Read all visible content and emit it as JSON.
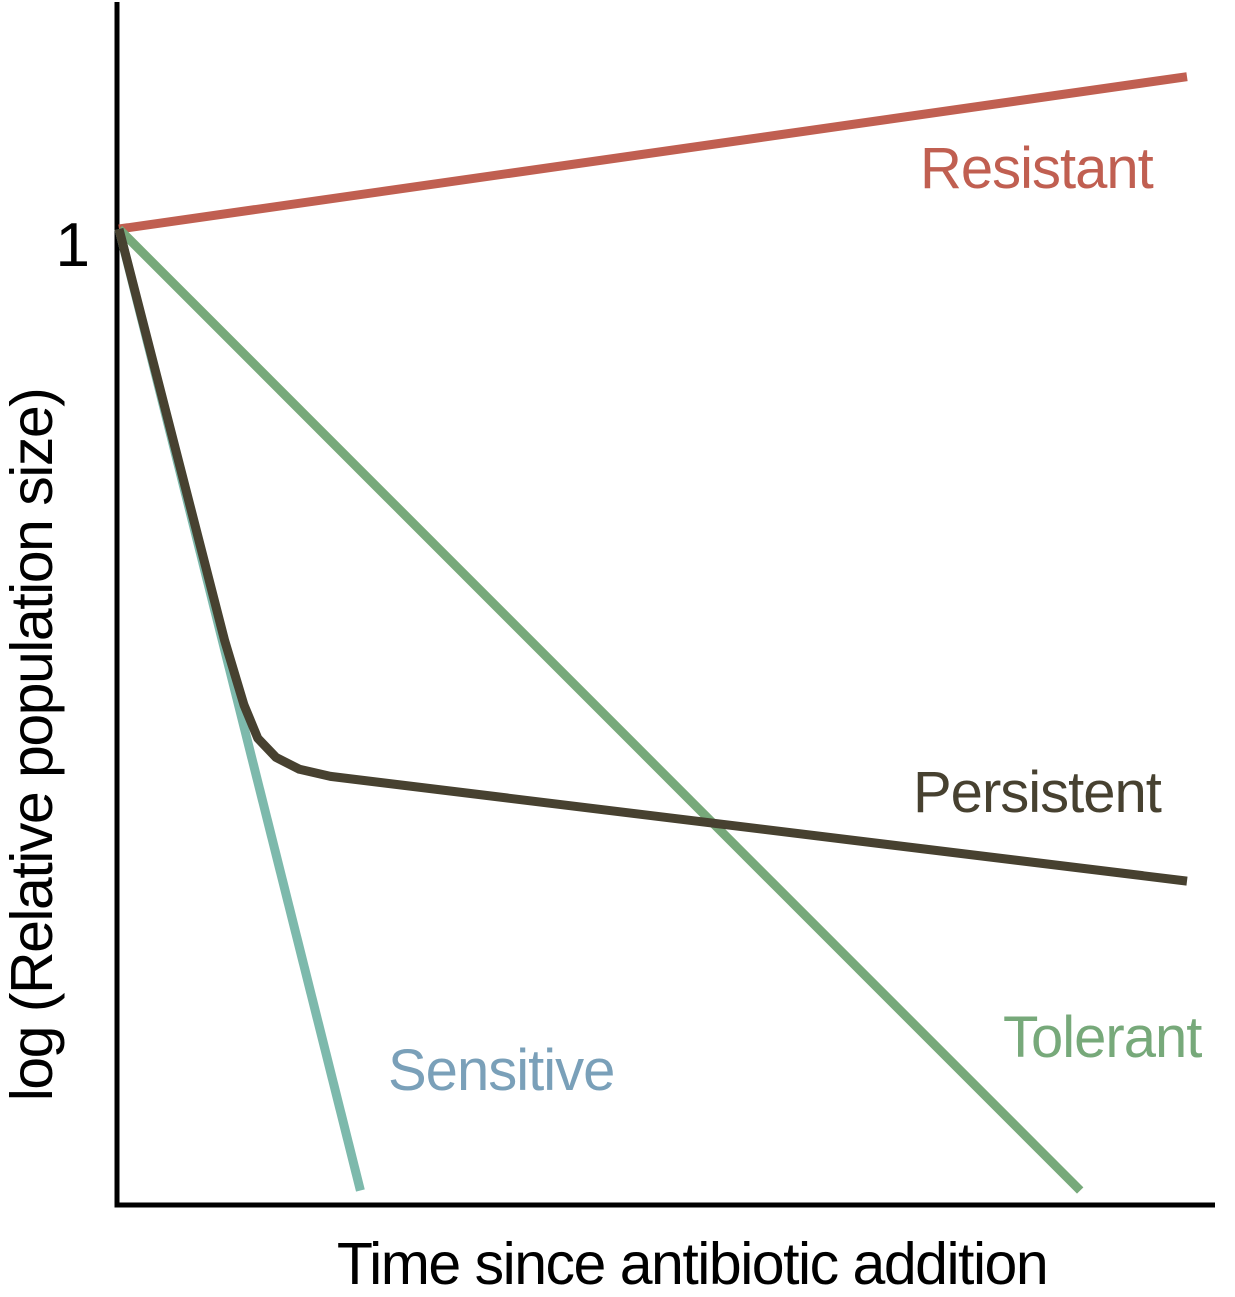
{
  "chart_data": {
    "type": "line",
    "title": "",
    "xlabel": "Time since antibiotic addition",
    "ylabel": "log (Relative population size)",
    "x_axis": {
      "label": "Time since antibiotic addition",
      "ticks": [],
      "units": "arbitrary (no tick marks shown)",
      "range": [
        0,
        1
      ]
    },
    "y_axis": {
      "label": "log (Relative population size)",
      "scale": "log (relative to initial population = 1)",
      "ticks": [
        {
          "value": 0,
          "label": "1"
        }
      ],
      "range": [
        -4.4,
        0.85
      ]
    },
    "legend_position": "inline labels beside each curve",
    "grid": false,
    "series": [
      {
        "name": "Resistant",
        "color": "#c05f51",
        "label_color": "#c05f51",
        "description": "population keeps growing slowly under antibiotic",
        "points": [
          {
            "t": 0,
            "log": 0
          },
          {
            "t": 1.0,
            "log": 0.64
          }
        ]
      },
      {
        "name": "Tolerant",
        "color": "#77a97a",
        "label_color": "#77a97a",
        "description": "single-phase slow exponential decline",
        "points": [
          {
            "t": 0,
            "log": 0
          },
          {
            "t": 0.9,
            "log": -4.04
          }
        ]
      },
      {
        "name": "Sensitive",
        "color": "#7db9ac",
        "label_color": "#7aa0b9",
        "description": "rapid exponential decline",
        "points": [
          {
            "t": 0,
            "log": 0
          },
          {
            "t": 0.226,
            "log": -4.04
          }
        ]
      },
      {
        "name": "Persistent",
        "color": "#474130",
        "label_color": "#474130",
        "description": "biphasic killing: rapid decline then slow decline plateau",
        "points": [
          {
            "t": 0,
            "log": 0
          },
          {
            "t": 0.099,
            "log": -1.73
          },
          {
            "t": 0.117,
            "log": -2.0
          },
          {
            "t": 0.13,
            "log": -2.14
          },
          {
            "t": 0.147,
            "log": -2.22
          },
          {
            "t": 0.169,
            "log": -2.27
          },
          {
            "t": 0.198,
            "log": -2.3
          },
          {
            "t": 1.0,
            "log": -2.74
          }
        ]
      }
    ]
  }
}
